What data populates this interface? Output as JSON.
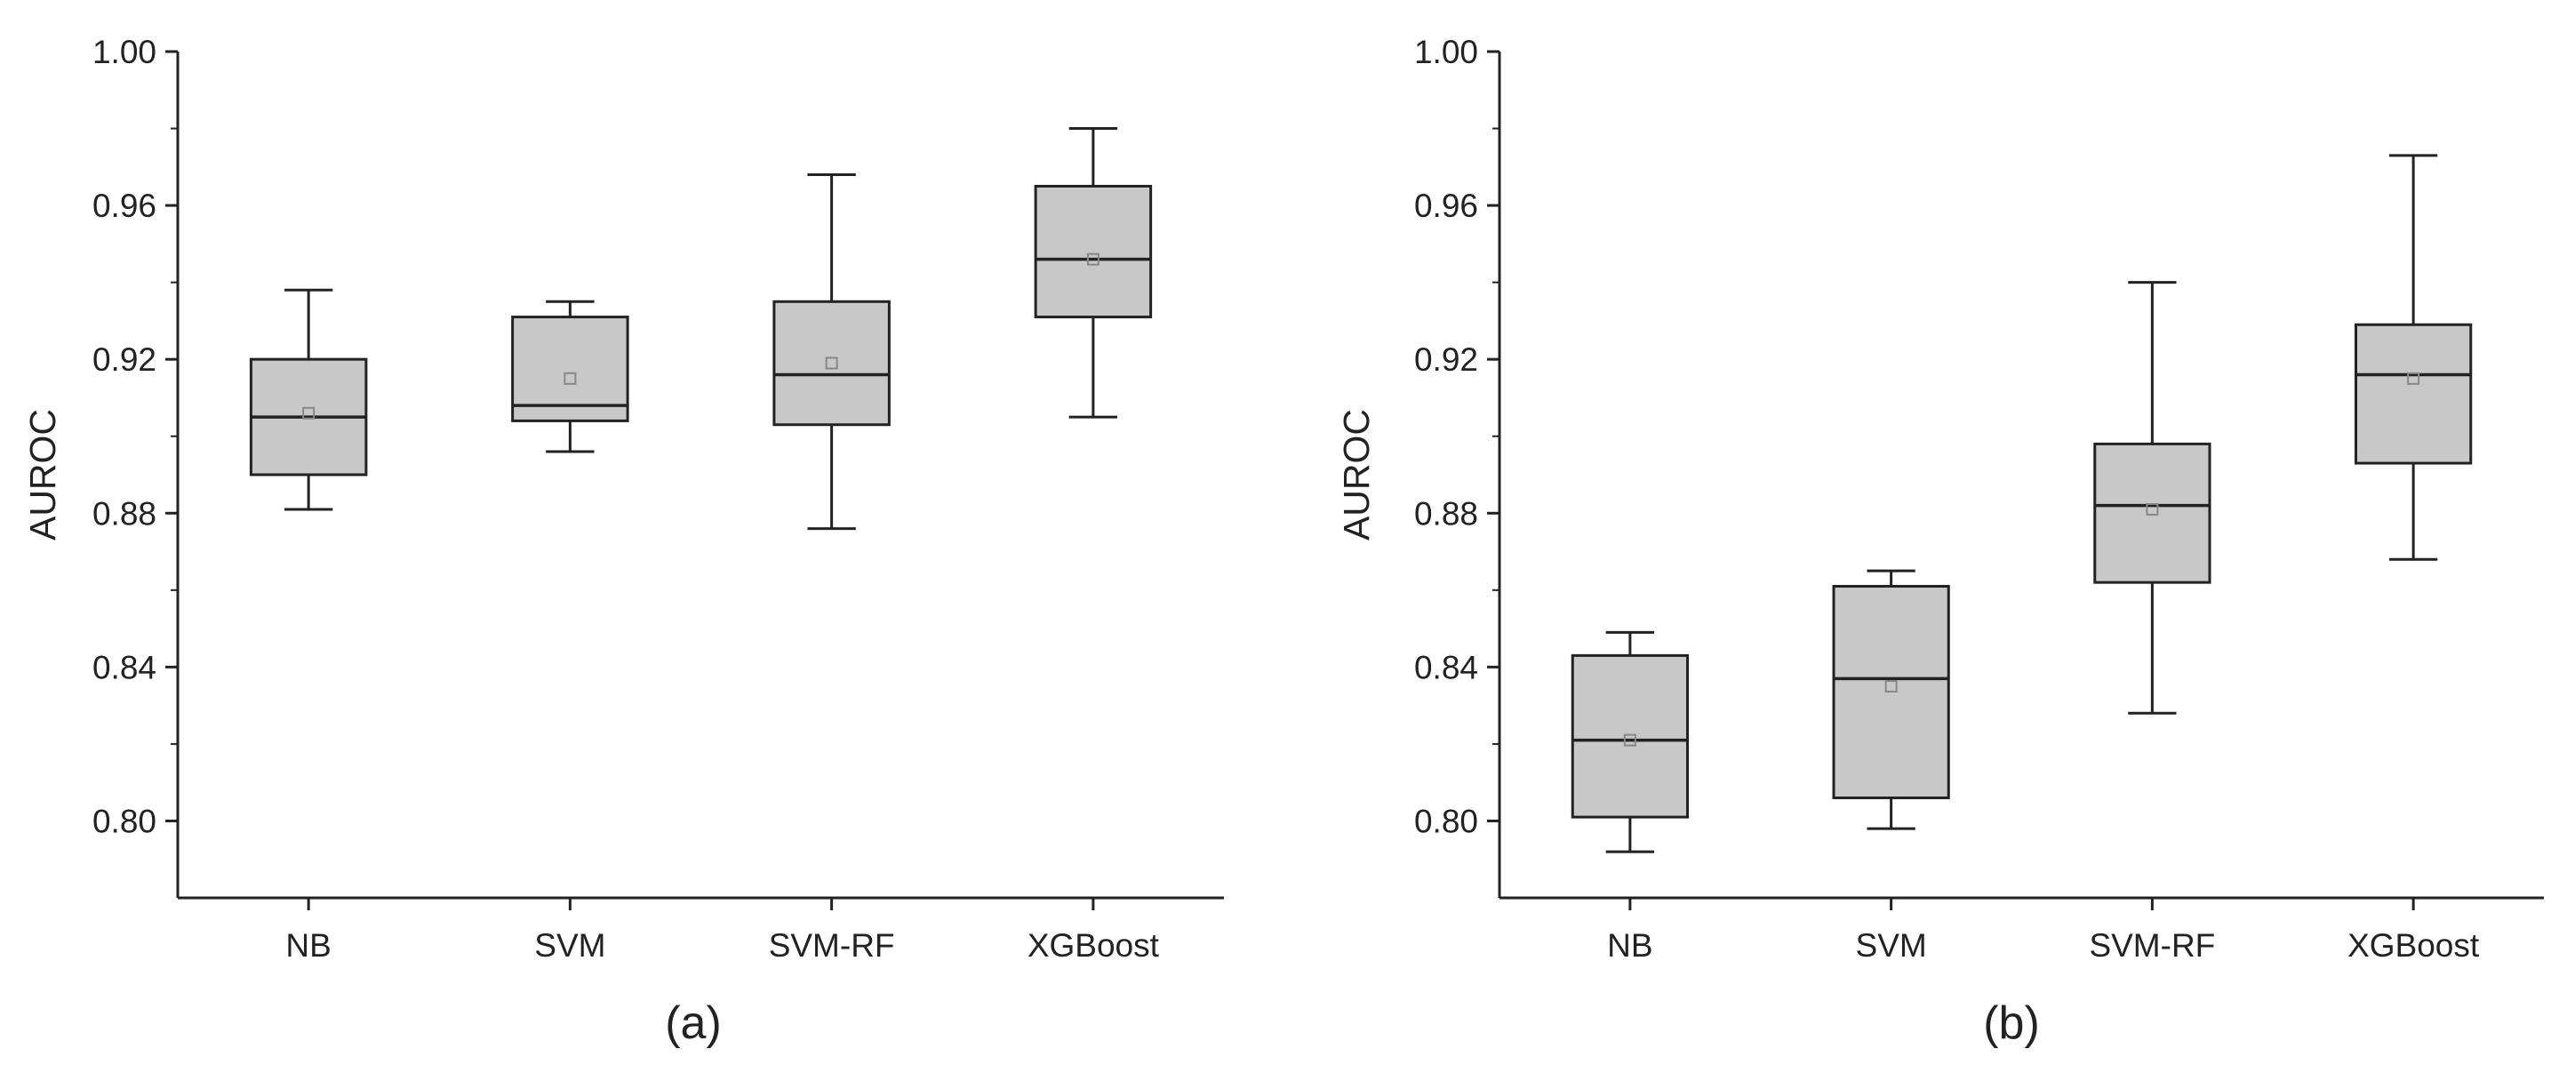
{
  "chart_data": [
    {
      "type": "box",
      "panel_label": "(a)",
      "ylabel": "AUROC",
      "xlabel": "",
      "ylim": [
        0.78,
        1.0
      ],
      "yticks": [
        "0.80",
        "0.84",
        "0.88",
        "0.92",
        "0.96",
        "1.00"
      ],
      "grid": false,
      "categories": [
        "NB",
        "SVM",
        "SVM-RF",
        "XGBoost"
      ],
      "boxes": [
        {
          "min": 0.881,
          "q1": 0.89,
          "median": 0.905,
          "mean": 0.906,
          "q3": 0.92,
          "max": 0.938
        },
        {
          "min": 0.896,
          "q1": 0.904,
          "median": 0.908,
          "mean": 0.915,
          "q3": 0.931,
          "max": 0.935
        },
        {
          "min": 0.876,
          "q1": 0.903,
          "median": 0.916,
          "mean": 0.919,
          "q3": 0.935,
          "max": 0.968
        },
        {
          "min": 0.905,
          "q1": 0.931,
          "median": 0.946,
          "mean": 0.946,
          "q3": 0.965,
          "max": 0.98
        }
      ]
    },
    {
      "type": "box",
      "panel_label": "(b)",
      "ylabel": "AUROC",
      "xlabel": "",
      "ylim": [
        0.78,
        1.0
      ],
      "yticks": [
        "0.80",
        "0.84",
        "0.88",
        "0.92",
        "0.96",
        "1.00"
      ],
      "grid": false,
      "categories": [
        "NB",
        "SVM",
        "SVM-RF",
        "XGBoost"
      ],
      "boxes": [
        {
          "min": 0.792,
          "q1": 0.801,
          "median": 0.821,
          "mean": 0.821,
          "q3": 0.843,
          "max": 0.849
        },
        {
          "min": 0.798,
          "q1": 0.806,
          "median": 0.837,
          "mean": 0.835,
          "q3": 0.861,
          "max": 0.865
        },
        {
          "min": 0.828,
          "q1": 0.862,
          "median": 0.882,
          "mean": 0.881,
          "q3": 0.898,
          "max": 0.94
        },
        {
          "min": 0.868,
          "q1": 0.893,
          "median": 0.916,
          "mean": 0.915,
          "q3": 0.929,
          "max": 0.973
        }
      ]
    }
  ],
  "colors": {
    "box_fill": "#c8c8c8",
    "box_stroke": "#222222",
    "axis": "#222222",
    "mean_marker": "#888888",
    "background": "#ffffff"
  }
}
